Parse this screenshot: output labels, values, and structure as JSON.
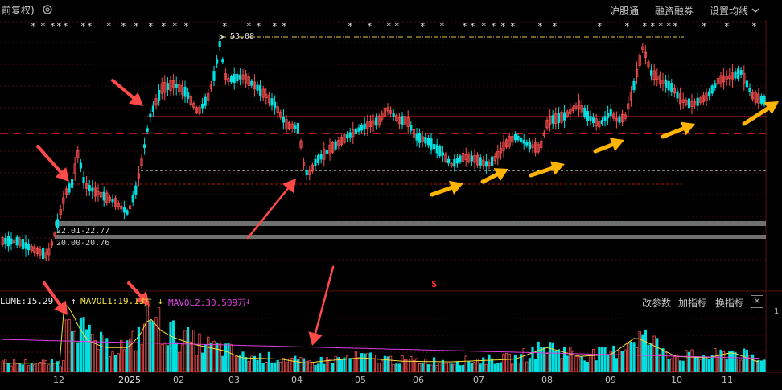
{
  "toolbar": {
    "adjust_label": "前复权)",
    "hgt_label": "沪股通",
    "margin_label": "融资融券",
    "ma_settings_label": "设置均线"
  },
  "price_chart": {
    "high_marker": "53.08",
    "range_upper": "22.01-22.77",
    "range_lower": "20.00-20.76",
    "signal_marker": "$"
  },
  "volume": {
    "volume_label": "LUME:15.29",
    "mavol1_label": "MAVOL1:19.13",
    "mavol1_suffix": "万",
    "mavol2_label": "MAVOL2:30.509万",
    "tools": {
      "change_params": "改参数",
      "add_indicator": "加指标",
      "switch_indicator": "换指标",
      "close": "✕"
    },
    "right_tick": "1"
  },
  "xaxis": [
    "12",
    "2025",
    "02",
    "03",
    "04",
    "05",
    "06",
    "07",
    "08",
    "09",
    "10",
    "11"
  ],
  "colors": {
    "up": "#ff5050",
    "down": "#00e0e0",
    "mavol1": "#f0e040",
    "mavol2": "#e040e0",
    "arrow_red": "#ff4a4a",
    "arrow_yellow": "#ffb400",
    "support_line": "#d02020"
  }
}
